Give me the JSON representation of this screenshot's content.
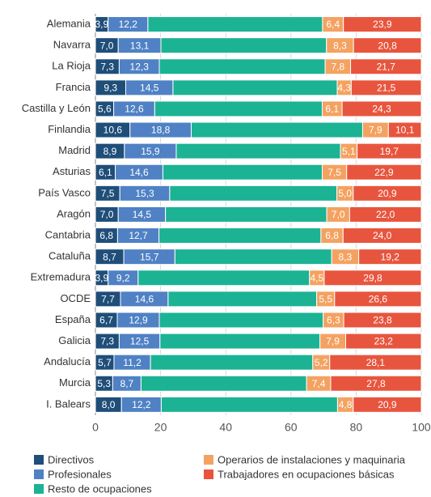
{
  "chart_data": {
    "type": "stacked_barh",
    "categories": [
      "Alemania",
      "Navarra",
      "La Rioja",
      "Francia",
      "Castilla y León",
      "Finlandia",
      "Madrid",
      "Asturias",
      "País Vasco",
      "Aragón",
      "Cantabria",
      "Cataluña",
      "Extremadura",
      "OCDE",
      "España",
      "Galicia",
      "Andalucía",
      "Murcia",
      "I. Balears"
    ],
    "series": [
      {
        "name": "Directivos",
        "color": "#1f4e79",
        "values": [
          3.9,
          7.0,
          7.3,
          9.3,
          5.6,
          10.6,
          8.9,
          6.1,
          7.5,
          7.0,
          6.8,
          8.7,
          3.9,
          7.7,
          6.7,
          7.3,
          5.7,
          5.3,
          8.0
        ],
        "value_labels": [
          "3,9",
          "7,0",
          "7,3",
          "9,3",
          "5,6",
          "10,6",
          "8,9",
          "6,1",
          "7,5",
          "7,0",
          "6,8",
          "8,7",
          "3,9",
          "7,7",
          "6,7",
          "7,3",
          "5,7",
          "5,3",
          "8,0"
        ]
      },
      {
        "name": "Profesionales",
        "color": "#4f81c4",
        "values": [
          12.2,
          13.1,
          12.3,
          14.5,
          12.6,
          18.8,
          15.9,
          14.6,
          15.3,
          14.5,
          12.7,
          15.7,
          9.2,
          14.6,
          12.9,
          12.5,
          11.2,
          8.7,
          12.2
        ],
        "value_labels": [
          "12,2",
          "13,1",
          "12,3",
          "14,5",
          "12,6",
          "18,8",
          "15,9",
          "14,6",
          "15,3",
          "14,5",
          "12,7",
          "15,7",
          "9,2",
          "14,6",
          "12,9",
          "12,5",
          "11,2",
          "8,7",
          "12,2"
        ]
      },
      {
        "name": "Resto de ocupaciones",
        "color": "#1bb394",
        "values": [
          53.6,
          50.8,
          50.9,
          50.4,
          51.4,
          52.6,
          50.4,
          48.9,
          51.3,
          49.5,
          49.7,
          48.1,
          52.6,
          45.6,
          50.3,
          49.1,
          49.8,
          50.8,
          54.1
        ]
      },
      {
        "name": "Operarios de instalaciones y maquinaria",
        "color": "#f4a261",
        "values": [
          6.4,
          8.3,
          7.8,
          4.3,
          6.1,
          7.9,
          5.1,
          7.5,
          5.0,
          7.0,
          6.8,
          8.3,
          4.5,
          5.5,
          6.3,
          7.9,
          5.2,
          7.4,
          4.8
        ],
        "value_labels": [
          "6,4",
          "8,3",
          "7,8",
          "4,3",
          "6,1",
          "7,9",
          "5,1",
          "7,5",
          "5,0",
          "7,0",
          "6,8",
          "8,3",
          "4,5",
          "5,5",
          "6,3",
          "7,9",
          "5,2",
          "7,4",
          "4,8"
        ]
      },
      {
        "name": "Trabajadores en ocupaciones básicas",
        "color": "#e8553e",
        "values": [
          23.9,
          20.8,
          21.7,
          21.5,
          24.3,
          10.1,
          19.7,
          22.9,
          20.9,
          22.0,
          24.0,
          19.2,
          29.8,
          26.6,
          23.8,
          23.2,
          28.1,
          27.8,
          20.9
        ],
        "value_labels": [
          "23,9",
          "20,8",
          "21,7",
          "21,5",
          "24,3",
          "10,1",
          "19,7",
          "22,9",
          "20,9",
          "22,0",
          "24,0",
          "19,2",
          "29,8",
          "26,6",
          "23,8",
          "23,2",
          "28,1",
          "27,8",
          "20,9"
        ]
      }
    ],
    "xlim": [
      0,
      100
    ],
    "xticks": [
      0,
      20,
      40,
      60,
      80,
      100
    ],
    "grid": true
  }
}
